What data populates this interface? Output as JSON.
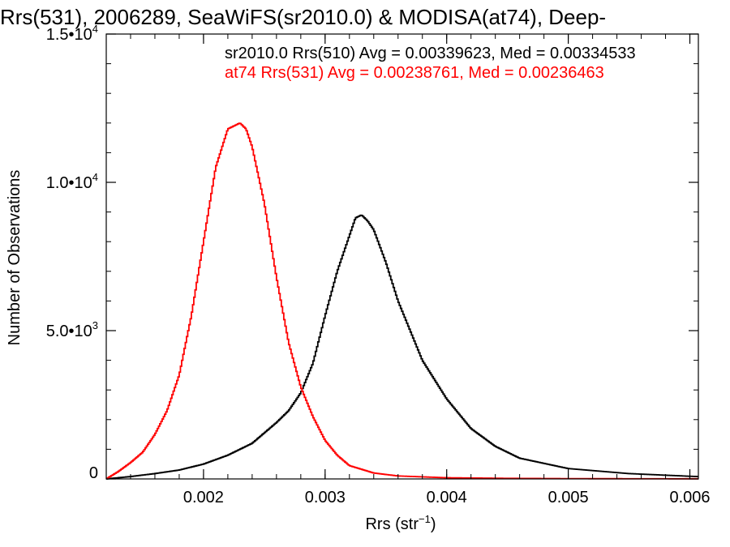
{
  "chart_data": {
    "type": "line",
    "style": "histogram-step",
    "title": "Rrs(531), 2006289, SeaWiFS(sr2010.0) & MODISA(at74), Deep-",
    "xlabel": {
      "main": "Rrs (str",
      "sup": "−1",
      "tail": ")"
    },
    "ylabel": "Number of Observations",
    "xlim": [
      0.0012,
      0.00607
    ],
    "ylim": [
      0,
      15000
    ],
    "grid": false,
    "legend_position": "top-right (text annotations)",
    "x_ticks": [
      {
        "value": 0.002,
        "label": "0.002"
      },
      {
        "value": 0.003,
        "label": "0.003"
      },
      {
        "value": 0.004,
        "label": "0.004"
      },
      {
        "value": 0.005,
        "label": "0.005"
      },
      {
        "value": 0.006,
        "label": "0.006"
      }
    ],
    "y_ticks": [
      {
        "value": 0,
        "main": "0",
        "exp": ""
      },
      {
        "value": 5000,
        "main": "5.0•10",
        "exp": "3"
      },
      {
        "value": 10000,
        "main": "1.0•10",
        "exp": "4"
      },
      {
        "value": 15000,
        "main": "1.5•10",
        "exp": "4"
      }
    ],
    "annotations": [
      {
        "text": "sr2010.0 Rrs(510) Avg = 0.00339623, Med = 0.00334533",
        "color": "#000000"
      },
      {
        "text": "at74 Rrs(531) Avg = 0.00238761, Med = 0.00236463",
        "color": "#ff0000"
      }
    ],
    "series": [
      {
        "color": "#000000",
        "x": [
          0.0012,
          0.0014,
          0.0016,
          0.0018,
          0.002,
          0.0022,
          0.0024,
          0.0026,
          0.0027,
          0.0028,
          0.0029,
          0.003,
          0.0031,
          0.0032,
          0.00325,
          0.0033,
          0.00335,
          0.0034,
          0.0035,
          0.0036,
          0.0037,
          0.0038,
          0.004,
          0.0042,
          0.0044,
          0.0046,
          0.005,
          0.0055,
          0.006,
          0.00607
        ],
        "y": [
          0,
          80,
          180,
          300,
          500,
          800,
          1200,
          1900,
          2300,
          2900,
          3900,
          5500,
          7000,
          8200,
          8800,
          8900,
          8700,
          8400,
          7300,
          6000,
          5000,
          4000,
          2700,
          1700,
          1100,
          700,
          350,
          180,
          90,
          80
        ]
      },
      {
        "color": "#ff0000",
        "x": [
          0.0012,
          0.0013,
          0.0014,
          0.0015,
          0.0016,
          0.0017,
          0.0018,
          0.0019,
          0.002,
          0.0021,
          0.0022,
          0.0023,
          0.00235,
          0.0024,
          0.0025,
          0.0026,
          0.0027,
          0.0028,
          0.0029,
          0.003,
          0.0031,
          0.0032,
          0.0034,
          0.0036,
          0.004,
          0.0045,
          0.005,
          0.006,
          0.00607
        ],
        "y": [
          0,
          250,
          550,
          900,
          1500,
          2300,
          3500,
          5500,
          8000,
          10500,
          11800,
          12000,
          11800,
          11200,
          9300,
          6800,
          4600,
          3100,
          2100,
          1300,
          800,
          450,
          200,
          100,
          40,
          20,
          10,
          5,
          5
        ]
      }
    ]
  }
}
